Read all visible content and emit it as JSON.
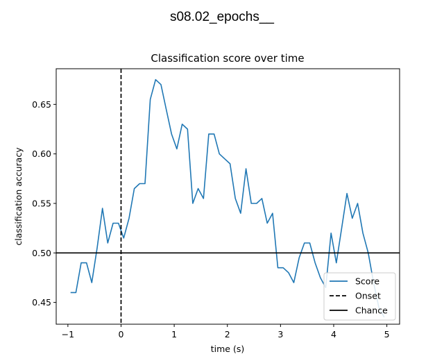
{
  "figure": {
    "suptitle": "s08.02_epochs__"
  },
  "chart_data": {
    "type": "line",
    "title": "Classification score over time",
    "xlabel": "time (s)",
    "ylabel": "classification accuracy",
    "xlim": [
      -1.22,
      5.24
    ],
    "ylim": [
      0.428,
      0.686
    ],
    "xticks": [
      -1,
      0,
      1,
      2,
      3,
      4,
      5
    ],
    "xtick_labels": [
      "−1",
      "0",
      "1",
      "2",
      "3",
      "4",
      "5"
    ],
    "yticks": [
      0.45,
      0.5,
      0.55,
      0.6,
      0.65
    ],
    "ytick_labels": [
      "0.45",
      "0.50",
      "0.55",
      "0.60",
      "0.65"
    ],
    "grid": false,
    "legend_position": "lower-right",
    "series": [
      {
        "name": "Score",
        "color": "#1f77b4",
        "style": "solid",
        "x": [
          -0.95,
          -0.85,
          -0.75,
          -0.65,
          -0.55,
          -0.45,
          -0.35,
          -0.25,
          -0.15,
          -0.05,
          0.05,
          0.15,
          0.25,
          0.35,
          0.45,
          0.55,
          0.65,
          0.75,
          0.85,
          0.95,
          1.05,
          1.15,
          1.25,
          1.35,
          1.45,
          1.55,
          1.65,
          1.75,
          1.85,
          1.95,
          2.05,
          2.15,
          2.25,
          2.35,
          2.45,
          2.55,
          2.65,
          2.75,
          2.85,
          2.95,
          3.05,
          3.15,
          3.25,
          3.35,
          3.45,
          3.55,
          3.65,
          3.75,
          3.85,
          3.95,
          4.05,
          4.15,
          4.25,
          4.35,
          4.45,
          4.55,
          4.65,
          4.75,
          4.85,
          4.95
        ],
        "y": [
          0.46,
          0.46,
          0.49,
          0.49,
          0.47,
          0.505,
          0.545,
          0.51,
          0.53,
          0.53,
          0.515,
          0.535,
          0.565,
          0.57,
          0.57,
          0.655,
          0.675,
          0.67,
          0.645,
          0.62,
          0.605,
          0.63,
          0.625,
          0.55,
          0.565,
          0.555,
          0.62,
          0.62,
          0.6,
          0.595,
          0.59,
          0.555,
          0.54,
          0.585,
          0.55,
          0.55,
          0.555,
          0.53,
          0.54,
          0.485,
          0.485,
          0.48,
          0.47,
          0.495,
          0.51,
          0.51,
          0.49,
          0.475,
          0.465,
          0.52,
          0.49,
          0.525,
          0.56,
          0.535,
          0.55,
          0.52,
          0.5,
          0.47,
          0.445,
          0.435
        ]
      }
    ],
    "reference_lines": [
      {
        "name": "Onset",
        "orientation": "vertical",
        "value": 0,
        "color": "#000000",
        "style": "dashed"
      },
      {
        "name": "Chance",
        "orientation": "horizontal",
        "value": 0.5,
        "color": "#000000",
        "style": "solid"
      }
    ],
    "legend": [
      {
        "label": "Score",
        "color": "#1f77b4",
        "style": "solid"
      },
      {
        "label": "Onset",
        "color": "#000000",
        "style": "dashed"
      },
      {
        "label": "Chance",
        "color": "#000000",
        "style": "solid"
      }
    ]
  }
}
